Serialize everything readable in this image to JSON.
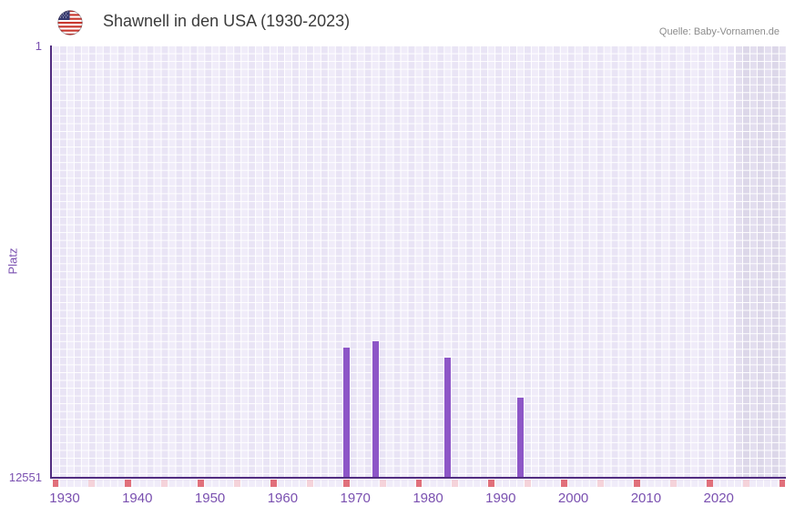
{
  "header": {
    "title": "Shawnell in den USA (1930-2023)",
    "source": "Quelle: Baby-Vornamen.de",
    "flag": "us-flag-icon"
  },
  "chart_data": {
    "type": "bar",
    "title": "Shawnell in den USA (1930-2023)",
    "source": "Quelle: Baby-Vornamen.de",
    "xlabel": "",
    "ylabel": "Platz",
    "y_axis": {
      "top_label": "1",
      "bottom_label": "12551",
      "min": 1,
      "max": 12551,
      "inverted": true
    },
    "x_range": [
      1930,
      2030
    ],
    "data_year_range": [
      1930,
      2023
    ],
    "future_band_start_year": 2024,
    "x_tick_labels": [
      1930,
      1940,
      1950,
      1960,
      1970,
      1980,
      1990,
      2000,
      2010,
      2020
    ],
    "decade_tick_years": [
      1930,
      1940,
      1950,
      1960,
      1970,
      1980,
      1990,
      2000,
      2010,
      2020,
      2030
    ],
    "half_decade_tick_years": [
      1935,
      1945,
      1955,
      1965,
      1975,
      1985,
      1995,
      2005,
      2015,
      2025
    ],
    "points": [
      {
        "year": 1970,
        "platz": 8800
      },
      {
        "year": 1974,
        "platz": 8615
      },
      {
        "year": 1984,
        "platz": 9070
      },
      {
        "year": 1994,
        "platz": 10245
      }
    ],
    "grid": true,
    "legend": false,
    "colors": {
      "bar": "#8d56c7",
      "axis": "#512c80",
      "tick_label": "#7a50b0",
      "grid_cell": "#f0ecf9",
      "grid_cell_alt": "#e9e4f5",
      "future_cell": "#e3deef",
      "future_cell_alt": "#dcd7e9",
      "decade_tick": "#e1707b",
      "half_decade_tick": "#f5d3da",
      "title_text": "#3b3b3b",
      "source_text": "#8c8c8c"
    }
  }
}
